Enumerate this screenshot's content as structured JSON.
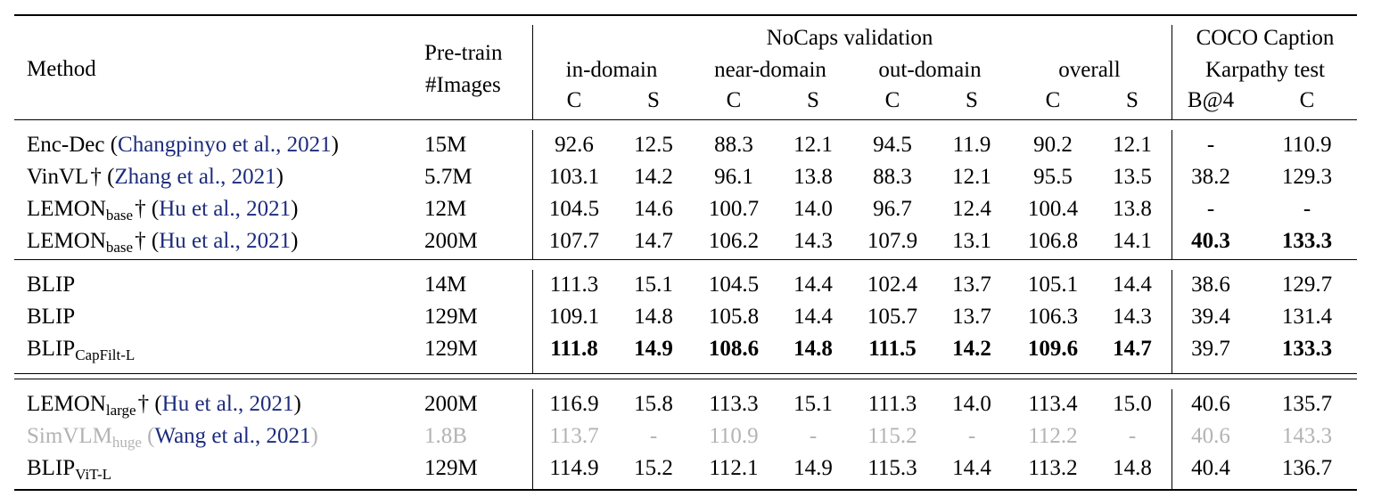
{
  "header": {
    "method": "Method",
    "pretrain_line1": "Pre-train",
    "pretrain_line2": "#Images",
    "nocaps_title": "NoCaps validation",
    "coco_line1": "COCO Caption",
    "coco_line2": "Karpathy test",
    "groups": [
      "in-domain",
      "near-domain",
      "out-domain",
      "overall"
    ],
    "sub_cols": [
      "C",
      "S",
      "C",
      "S",
      "C",
      "S",
      "C",
      "S",
      "B@4",
      "C"
    ]
  },
  "rows": [
    {
      "name": "Enc-Dec",
      "sub": "",
      "dagger": "",
      "cite": "Changpinyo et al., 2021",
      "images": "15M",
      "vals": [
        "92.6",
        "12.5",
        "88.3",
        "12.1",
        "94.5",
        "11.9",
        "90.2",
        "12.1",
        "-",
        "110.9"
      ],
      "bold": []
    },
    {
      "name": "VinVL",
      "sub": "",
      "dagger": "†",
      "cite": "Zhang et al., 2021",
      "images": "5.7M",
      "vals": [
        "103.1",
        "14.2",
        "96.1",
        "13.8",
        "88.3",
        "12.1",
        "95.5",
        "13.5",
        "38.2",
        "129.3"
      ],
      "bold": []
    },
    {
      "name": "LEMON",
      "sub": "base",
      "dagger": "†",
      "cite": "Hu et al., 2021",
      "images": "12M",
      "vals": [
        "104.5",
        "14.6",
        "100.7",
        "14.0",
        "96.7",
        "12.4",
        "100.4",
        "13.8",
        "-",
        "-"
      ],
      "bold": []
    },
    {
      "name": "LEMON",
      "sub": "base",
      "dagger": "†",
      "cite": "Hu et al., 2021",
      "images": "200M",
      "vals": [
        "107.7",
        "14.7",
        "106.2",
        "14.3",
        "107.9",
        "13.1",
        "106.8",
        "14.1",
        "40.3",
        "133.3"
      ],
      "bold": [
        8,
        9
      ]
    },
    {
      "name": "BLIP",
      "sub": "",
      "dagger": "",
      "cite": "",
      "images": "14M",
      "vals": [
        "111.3",
        "15.1",
        "104.5",
        "14.4",
        "102.4",
        "13.7",
        "105.1",
        "14.4",
        "38.6",
        "129.7"
      ],
      "bold": []
    },
    {
      "name": "BLIP",
      "sub": "",
      "dagger": "",
      "cite": "",
      "images": "129M",
      "vals": [
        "109.1",
        "14.8",
        "105.8",
        "14.4",
        "105.7",
        "13.7",
        "106.3",
        "14.3",
        "39.4",
        "131.4"
      ],
      "bold": []
    },
    {
      "name": "BLIP",
      "sub": "CapFilt-L",
      "dagger": "",
      "cite": "",
      "images": "129M",
      "vals": [
        "111.8",
        "14.9",
        "108.6",
        "14.8",
        "111.5",
        "14.2",
        "109.6",
        "14.7",
        "39.7",
        "133.3"
      ],
      "bold": [
        0,
        1,
        2,
        3,
        4,
        5,
        6,
        7,
        9
      ]
    },
    {
      "name": "LEMON",
      "sub": "large",
      "dagger": "†",
      "cite": "Hu et al., 2021",
      "images": "200M",
      "vals": [
        "116.9",
        "15.8",
        "113.3",
        "15.1",
        "111.3",
        "14.0",
        "113.4",
        "15.0",
        "40.6",
        "135.7"
      ],
      "bold": []
    },
    {
      "name": "SimVLM",
      "sub": "huge",
      "dagger": "",
      "cite": "Wang et al., 2021",
      "images": "1.8B",
      "gray": true,
      "vals": [
        "113.7",
        "-",
        "110.9",
        "-",
        "115.2",
        "-",
        "112.2",
        "-",
        "40.6",
        "143.3"
      ],
      "bold": []
    },
    {
      "name": "BLIP",
      "sub": "ViT-L",
      "dagger": "",
      "cite": "",
      "images": "129M",
      "vals": [
        "114.9",
        "15.2",
        "112.1",
        "14.9",
        "115.3",
        "14.4",
        "113.2",
        "14.8",
        "40.4",
        "136.7"
      ],
      "bold": []
    }
  ]
}
